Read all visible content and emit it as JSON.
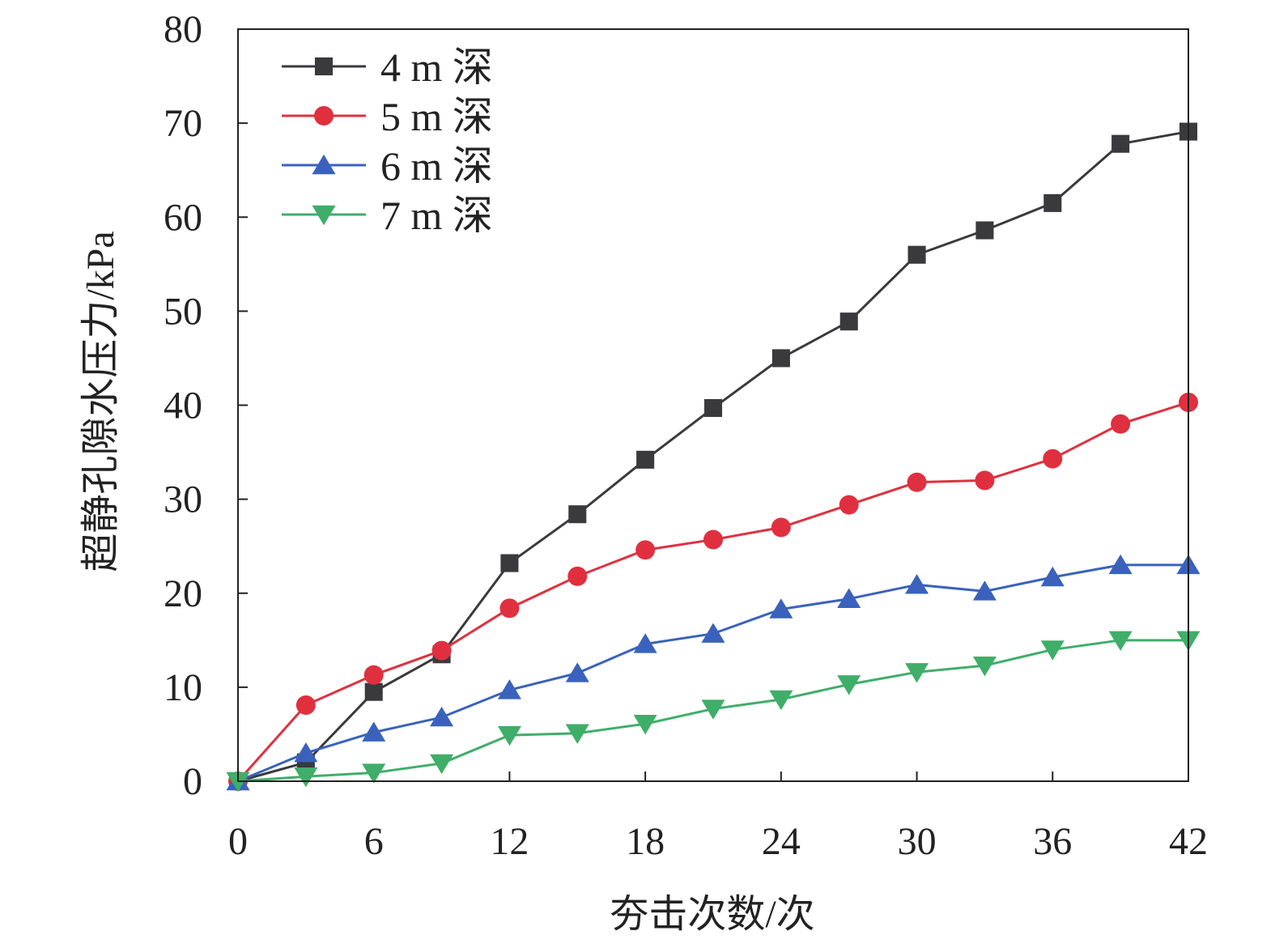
{
  "chart_data": {
    "type": "line",
    "xlabel": "夯击次数/次",
    "ylabel": "超静孔隙水压力/kPa",
    "xlim": [
      0,
      42
    ],
    "ylim": [
      0,
      80
    ],
    "xticks": [
      "0",
      "6",
      "12",
      "18",
      "24",
      "30",
      "36",
      "42"
    ],
    "yticks": [
      "0",
      "10",
      "20",
      "30",
      "40",
      "50",
      "60",
      "70",
      "80"
    ],
    "grid": false,
    "legend_position": "top-left",
    "x": [
      0,
      3,
      6,
      9,
      12,
      15,
      18,
      21,
      24,
      27,
      30,
      33,
      36,
      39,
      42
    ],
    "series": [
      {
        "name": "4 m 深",
        "color": "#3a3a3d",
        "marker": "square",
        "values": [
          0,
          2.0,
          9.5,
          13.5,
          23.2,
          28.4,
          34.2,
          39.7,
          45.0,
          48.9,
          56.0,
          58.6,
          61.5,
          67.8,
          69.1
        ]
      },
      {
        "name": "5 m 深",
        "color": "#e0303f",
        "marker": "circle",
        "values": [
          0,
          8.1,
          11.3,
          13.9,
          18.4,
          21.8,
          24.6,
          25.7,
          27.0,
          29.4,
          31.8,
          32.0,
          34.3,
          38.0,
          40.3
        ]
      },
      {
        "name": "6 m 深",
        "color": "#3a62bd",
        "marker": "triangle-up",
        "values": [
          0,
          3.0,
          5.2,
          6.8,
          9.7,
          11.5,
          14.6,
          15.7,
          18.3,
          19.4,
          20.9,
          20.2,
          21.7,
          23.0,
          23.0
        ]
      },
      {
        "name": "7 m 深",
        "color": "#3fae69",
        "marker": "triangle-down",
        "values": [
          0,
          0.5,
          0.9,
          1.9,
          4.9,
          5.1,
          6.1,
          7.7,
          8.7,
          10.3,
          11.6,
          12.3,
          14.0,
          15.0,
          15.0
        ]
      }
    ]
  }
}
